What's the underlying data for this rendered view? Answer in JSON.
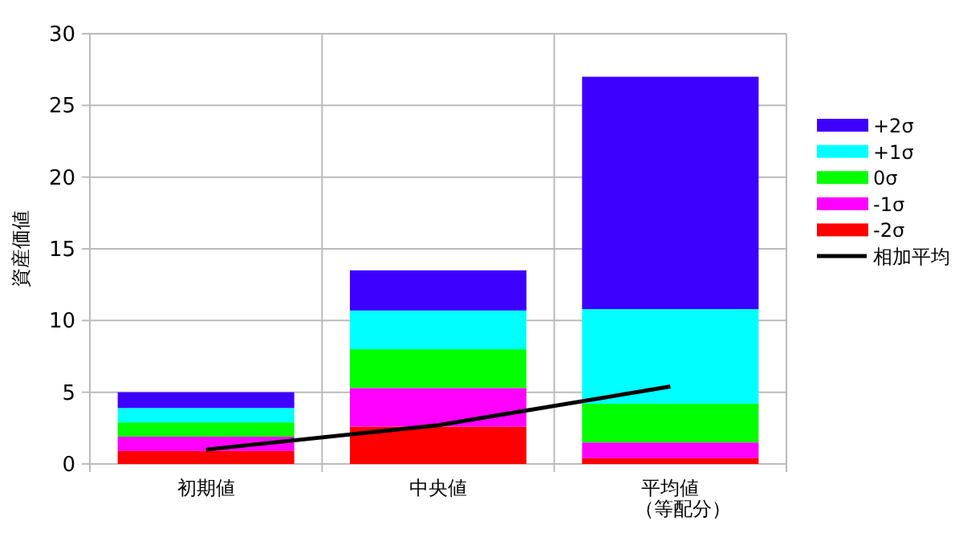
{
  "chart_data": {
    "type": "bar",
    "stacked": true,
    "ylabel": "資産価値",
    "categories": [
      "初期値",
      "中央値",
      "平均値（等配分）"
    ],
    "series": [
      {
        "name": "-2σ",
        "color": "#ff0000",
        "values": [
          0.9,
          2.6,
          0.4
        ]
      },
      {
        "name": "-1σ",
        "color": "#ff00ff",
        "values": [
          1.0,
          2.7,
          1.1
        ]
      },
      {
        "name": "0σ",
        "color": "#00ff00",
        "values": [
          1.0,
          2.7,
          2.7
        ]
      },
      {
        "name": "+1σ",
        "color": "#00ffff",
        "values": [
          1.0,
          2.7,
          6.6
        ]
      },
      {
        "name": "+2σ",
        "color": "#3d00ff",
        "values": [
          1.1,
          2.8,
          16.2
        ]
      },
      {
        "name": "相加平均",
        "type": "line",
        "color": "#000000",
        "values": [
          1.0,
          2.7,
          5.4
        ]
      }
    ],
    "ylim": [
      0,
      30
    ],
    "yticks": [
      0,
      5,
      10,
      15,
      20,
      25,
      30
    ],
    "grid": true,
    "legend": "right"
  }
}
